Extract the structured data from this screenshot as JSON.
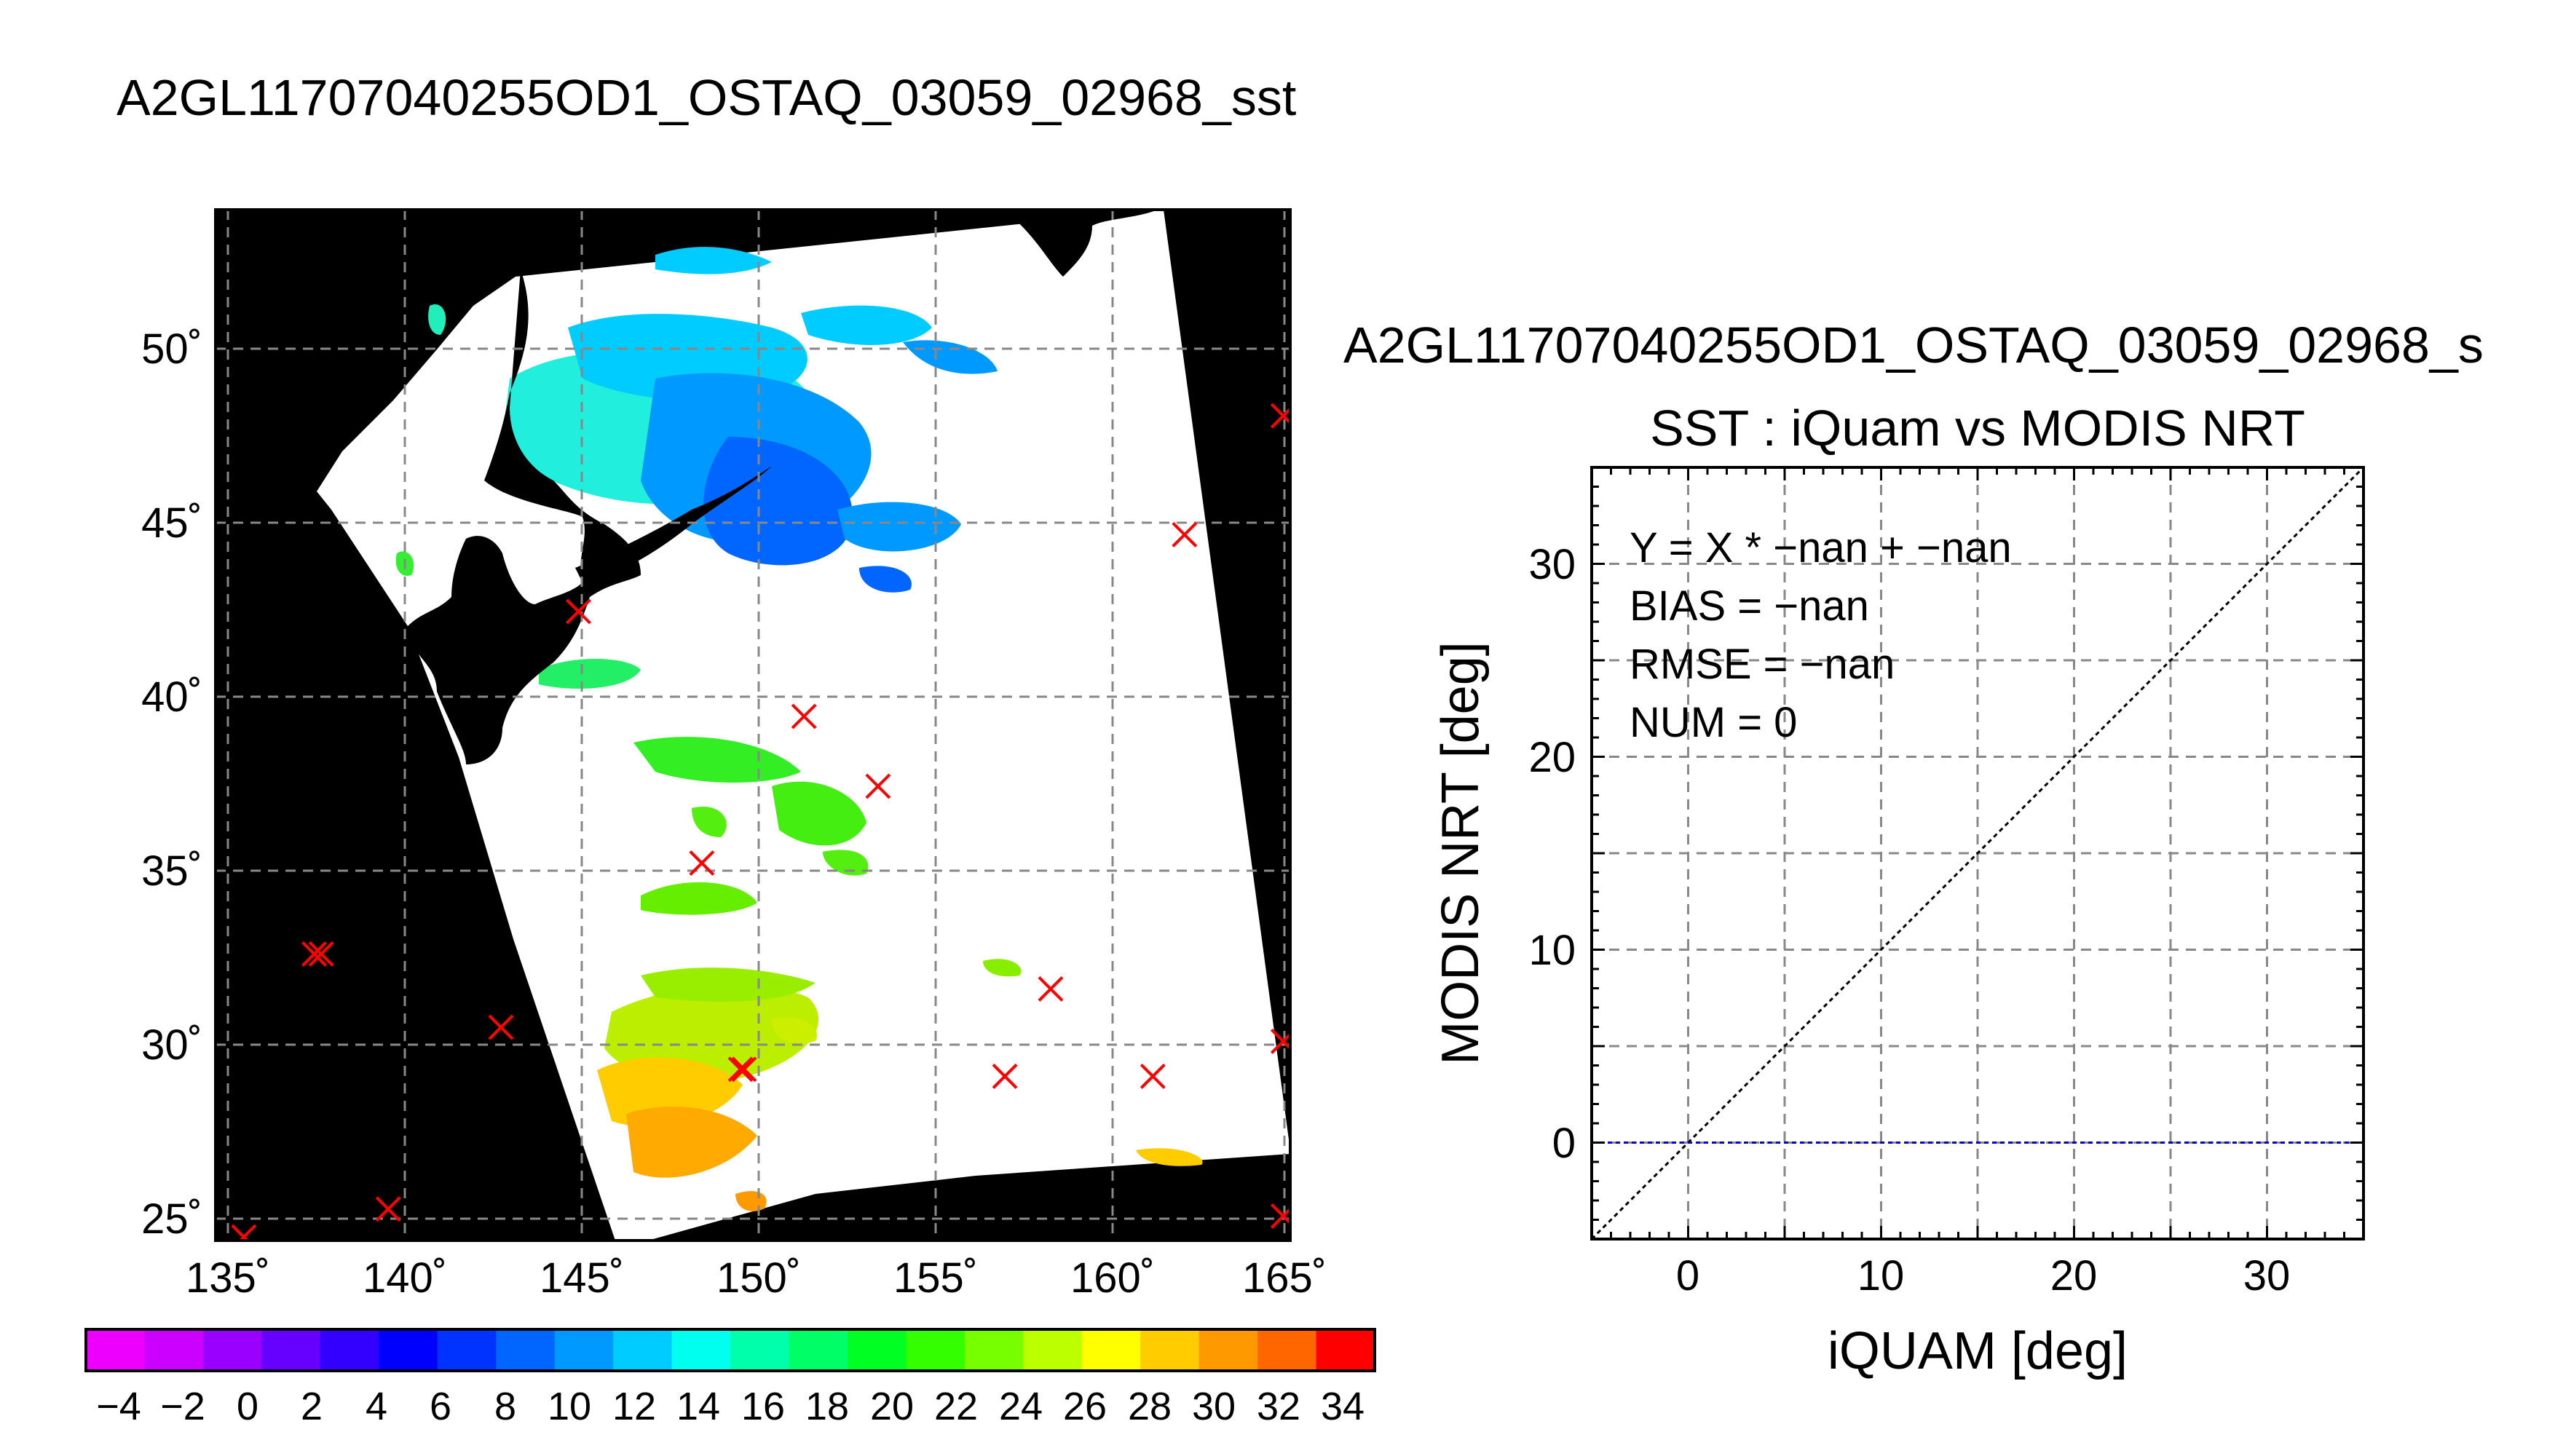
{
  "colors": {
    "background": "#ffffff",
    "land": "#000000",
    "ocean_no_data": "#ffffff",
    "marker": "#ff0000",
    "grid": "#808080",
    "identity_line": "#000000",
    "fit_line": "#0000cc"
  },
  "map": {
    "title": "A2GL11707040255OD1_OSTAQ_03059_02968_sst",
    "lon_ticks": [
      "135˚",
      "140˚",
      "145˚",
      "150˚",
      "155˚",
      "160˚",
      "165˚"
    ],
    "lat_ticks": [
      "25˚",
      "30˚",
      "35˚",
      "40˚",
      "45˚",
      "50˚"
    ],
    "lon_range": [
      134.5,
      165
    ],
    "lat_range": [
      24.4,
      53.9
    ],
    "grid": "dashed",
    "iquam_markers": [
      {
        "lon": 135.3,
        "lat": 24.5
      },
      {
        "lon": 137.3,
        "lat": 32.6
      },
      {
        "lon": 137.5,
        "lat": 32.6
      },
      {
        "lon": 139.4,
        "lat": 25.3
      },
      {
        "lon": 142.6,
        "lat": 30.5
      },
      {
        "lon": 144.8,
        "lat": 42.4
      },
      {
        "lon": 148.3,
        "lat": 35.2
      },
      {
        "lon": 149.4,
        "lat": 29.3
      },
      {
        "lon": 149.5,
        "lat": 29.3
      },
      {
        "lon": 151.2,
        "lat": 39.4
      },
      {
        "lon": 153.3,
        "lat": 37.4
      },
      {
        "lon": 156.9,
        "lat": 29.1
      },
      {
        "lon": 158.2,
        "lat": 31.6
      },
      {
        "lon": 161.1,
        "lat": 29.1
      },
      {
        "lon": 162.0,
        "lat": 44.6
      },
      {
        "lon": 164.8,
        "lat": 48.0
      },
      {
        "lon": 164.8,
        "lat": 30.1
      },
      {
        "lon": 164.8,
        "lat": 25.1
      }
    ]
  },
  "colorbar": {
    "labels": [
      "−4",
      "−2",
      "0",
      "2",
      "4",
      "6",
      "8",
      "10",
      "12",
      "14",
      "16",
      "18",
      "20",
      "22",
      "24",
      "26",
      "28",
      "30",
      "32",
      "34"
    ],
    "range": [
      -5,
      35
    ],
    "step": 2,
    "colors": [
      "#ee00ff",
      "#cc00ff",
      "#9900ff",
      "#6600ff",
      "#3300ff",
      "#0000ff",
      "#0033ff",
      "#0066ff",
      "#0099ff",
      "#00ccff",
      "#00ffee",
      "#00ffaa",
      "#00ff66",
      "#00ff22",
      "#33ff00",
      "#77ff00",
      "#bbff00",
      "#ffff00",
      "#ffcc00",
      "#ff9900",
      "#ff6600",
      "#ff0000"
    ]
  },
  "chart_data": {
    "type": "scatter",
    "figure_title": "A2GL11707040255OD1_OSTAQ_03059_02968_s",
    "title": "SST : iQuam vs MODIS NRT",
    "xlabel": "iQUAM [deg]",
    "ylabel": "MODIS NRT [deg]",
    "xlim": [
      -5,
      35
    ],
    "ylim": [
      -5,
      35
    ],
    "xticks": [
      0,
      10,
      20,
      30
    ],
    "yticks": [
      0,
      10,
      20,
      30
    ],
    "grid": true,
    "points": [],
    "identity_line": {
      "x": [
        -5,
        35
      ],
      "y": [
        -5,
        35
      ]
    },
    "fit_line": {
      "y": 0
    },
    "annotations": [
      "Y = X * −nan + −nan",
      "BIAS = −nan",
      "RMSE = −nan",
      "NUM = 0"
    ]
  }
}
